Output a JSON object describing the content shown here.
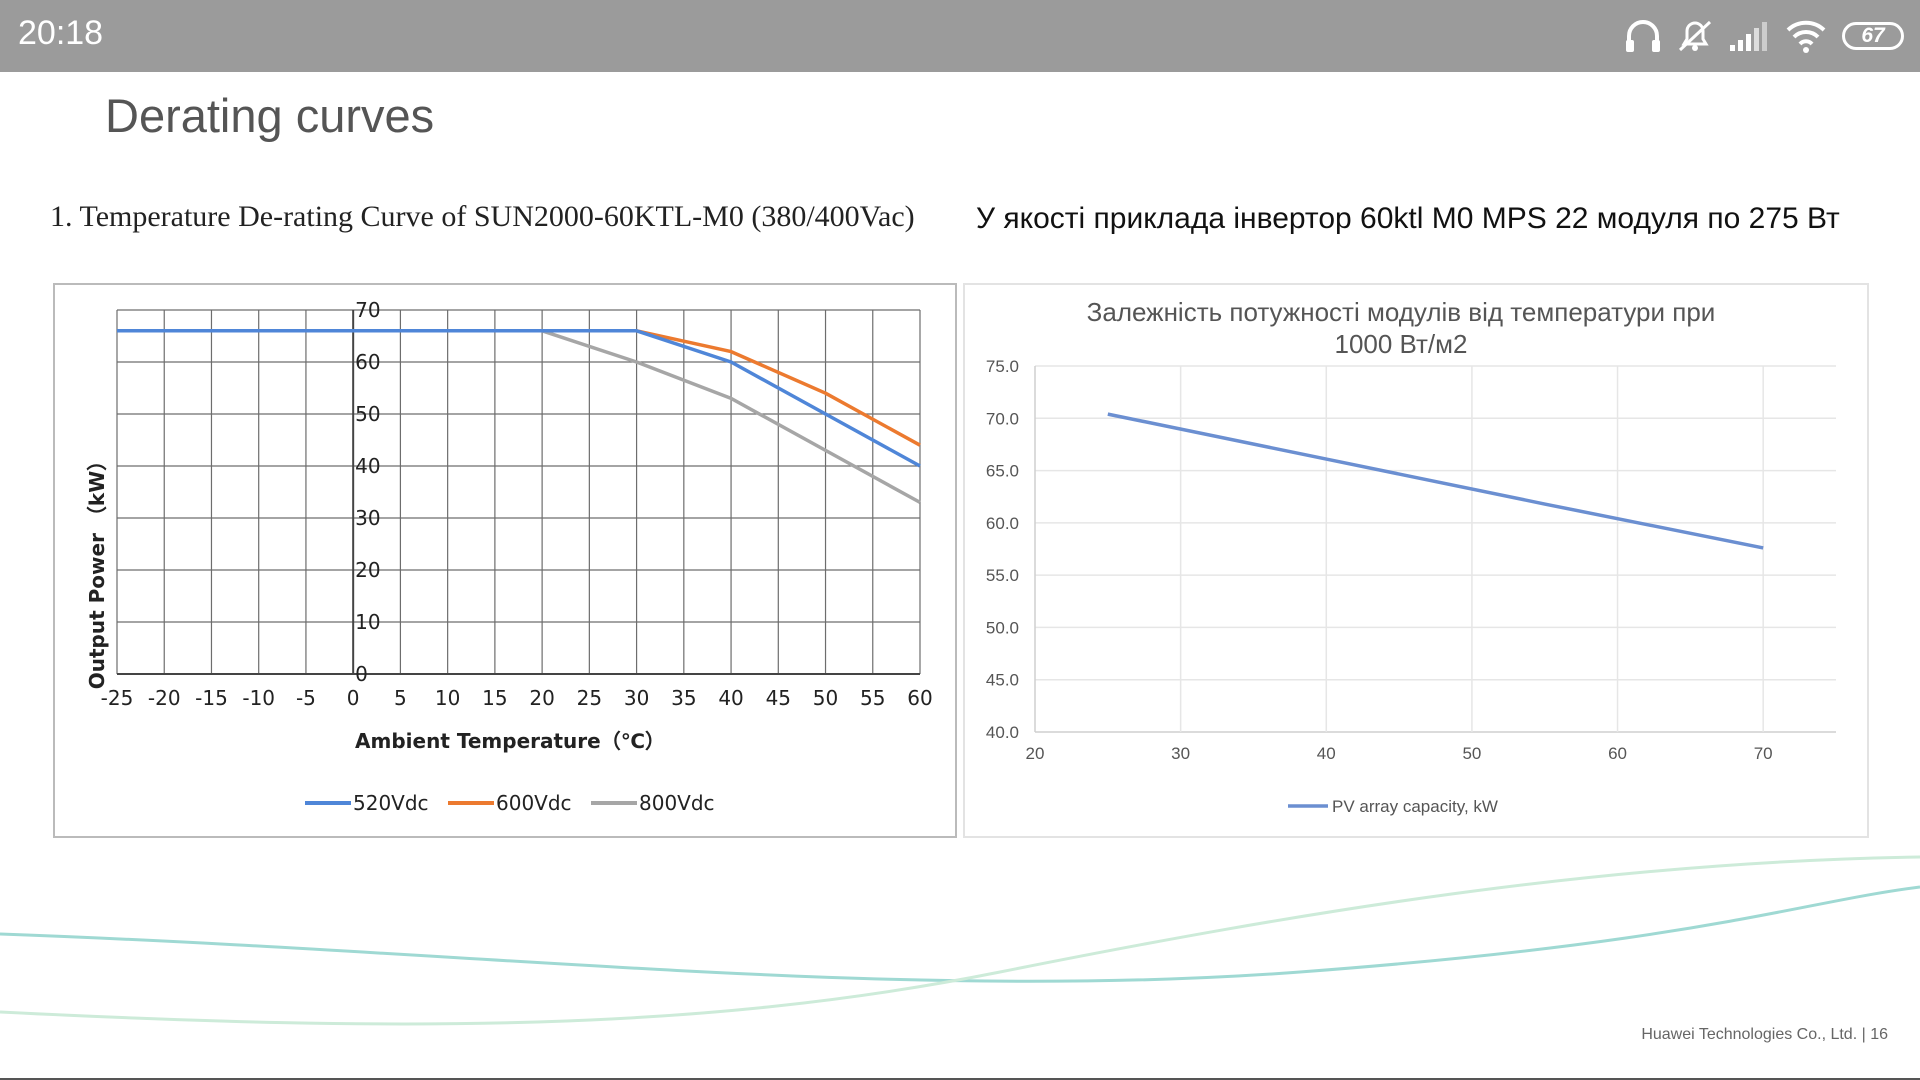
{
  "status_bar": {
    "time": "20:18",
    "icons": [
      "headphones-icon",
      "mute-icon",
      "signal-icon",
      "wifi-icon",
      "battery-icon"
    ],
    "battery_level": "67"
  },
  "slide": {
    "title": "Derating curves",
    "caption_left": "1.  Temperature De-rating Curve of SUN2000-60KTL-M0 (380/400Vac)",
    "caption_right": "У якості приклада інвертор 60ktl M0 MPS 22 модуля по 275 Вт",
    "footer": "Huawei Technologies Co., Ltd.  |   16"
  },
  "chart_data": [
    {
      "type": "line",
      "title": "",
      "xlabel": "Ambient  Temperature（℃）",
      "ylabel": "Output Power （kW）",
      "xlim": [
        -25,
        60
      ],
      "ylim": [
        0,
        70
      ],
      "x_ticks": [
        -25,
        -20,
        -15,
        -10,
        -5,
        0,
        5,
        10,
        15,
        20,
        25,
        30,
        35,
        40,
        45,
        50,
        55,
        60
      ],
      "y_ticks": [
        0,
        10,
        20,
        30,
        40,
        50,
        60,
        70
      ],
      "grid": true,
      "legend_position": "bottom",
      "series": [
        {
          "name": "520Vdc",
          "color": "#4f86d8",
          "x": [
            -25,
            20,
            30,
            40,
            50,
            60
          ],
          "y": [
            66,
            66,
            66,
            60,
            50,
            40
          ]
        },
        {
          "name": "600Vdc",
          "color": "#ec7a2f",
          "x": [
            -25,
            20,
            30,
            40,
            50,
            60
          ],
          "y": [
            66,
            66,
            66,
            62,
            54,
            44
          ]
        },
        {
          "name": "800Vdc",
          "color": "#a6a6a6",
          "x": [
            -25,
            20,
            30,
            40,
            50,
            60
          ],
          "y": [
            66,
            66,
            60,
            53,
            43,
            33
          ]
        }
      ]
    },
    {
      "type": "line",
      "title": "Залежність потужності модулів від температури при 1000 Вт/м2",
      "title_lines": [
        "Залежність потужності модулів від температури при",
        "1000 Вт/м2"
      ],
      "xlabel": "",
      "ylabel": "",
      "xlim": [
        20,
        75
      ],
      "ylim": [
        40,
        75
      ],
      "x_ticks": [
        20,
        30,
        40,
        50,
        60,
        70
      ],
      "y_ticks": [
        "40.0",
        "45.0",
        "50.0",
        "55.0",
        "60.0",
        "65.0",
        "70.0",
        "75.0"
      ],
      "grid": true,
      "legend_position": "bottom",
      "series": [
        {
          "name": "PV array capacity, kW",
          "color": "#6b8fd1",
          "x": [
            25,
            40,
            55,
            70
          ],
          "y": [
            70.4,
            66.1,
            61.8,
            57.6
          ]
        }
      ]
    }
  ]
}
